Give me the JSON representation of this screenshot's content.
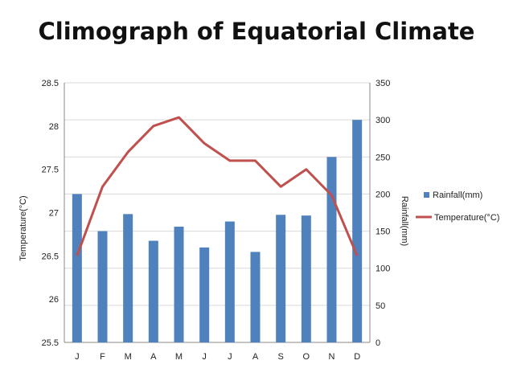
{
  "title": "Climograph of Equatorial Climate",
  "colors": {
    "rainfall": "#4F81BD",
    "temperature": "#C0504D",
    "grid": "#D9D9D9",
    "axis": "#888888"
  },
  "chart_data": {
    "type": "bar+line",
    "title": "Climograph of Equatorial Climate",
    "categories": [
      "J",
      "F",
      "M",
      "A",
      "M",
      "J",
      "J",
      "A",
      "S",
      "O",
      "N",
      "D"
    ],
    "series": [
      {
        "name": "Rainfall(mm)",
        "type": "bar",
        "axis": "right",
        "values": [
          200,
          150,
          173,
          137,
          156,
          128,
          163,
          122,
          172,
          171,
          250,
          300
        ]
      },
      {
        "name": "Temperature(°C)",
        "type": "line",
        "axis": "left",
        "values": [
          26.5,
          27.3,
          27.7,
          28.0,
          28.1,
          27.8,
          27.6,
          27.6,
          27.3,
          27.5,
          27.2,
          26.5
        ]
      }
    ],
    "ylabel": "Temperature(°C)",
    "y2label": "Rainfall(mm)",
    "ylim": [
      25.5,
      28.5
    ],
    "y2lim": [
      0,
      350
    ],
    "yticks": [
      "25.5",
      "26",
      "26.5",
      "27",
      "27.5",
      "28",
      "28.5"
    ],
    "y2ticks": [
      "0",
      "50",
      "100",
      "150",
      "200",
      "250",
      "300",
      "350"
    ],
    "grid": true,
    "legend": "right"
  }
}
